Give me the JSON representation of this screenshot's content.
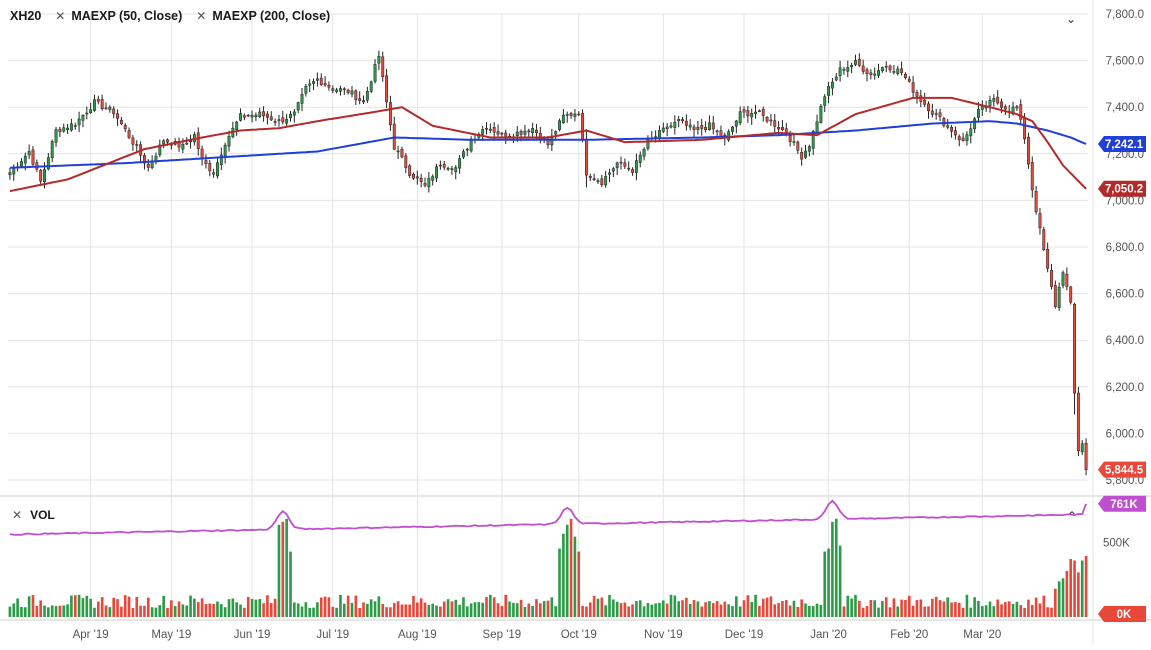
{
  "legend": {
    "symbol": "XH20",
    "close_icon": "close-icon",
    "ind1": "MAEXP (50, Close)",
    "ind2": "MAEXP (200, Close)"
  },
  "volume_panel": {
    "label": "VOL",
    "collapse_icon": "chevron-up-icon"
  },
  "price_panel": {
    "collapse_icon": "chevron-down-icon"
  },
  "colors": {
    "up": "#2b9b47",
    "down": "#e8473a",
    "ma50": "#b22a2a",
    "ma200": "#1f3fd6",
    "vol_ma": "#c04fd0",
    "grid": "#e4e4e4",
    "axis_text": "#555555"
  },
  "badges": {
    "ma200": "7,242.1",
    "ma50": "7,050.2",
    "last": "5,844.5",
    "vol_ma": "761K",
    "vol_last": "0K"
  },
  "chart_data": [
    {
      "type": "candlestick",
      "symbol": "XH20",
      "ylim": [
        5800,
        7800
      ],
      "y_ticks": [
        "7,800.0",
        "7,600.0",
        "7,400.0",
        "7,200.0",
        "7,000.0",
        "6,800.0",
        "6,600.0",
        "6,400.0",
        "6,200.0",
        "6,000.0",
        "5,800.0"
      ],
      "x_ticks": [
        "Apr '19",
        "May '19",
        "Jun '19",
        "Jul '19",
        "Aug '19",
        "Sep '19",
        "Oct '19",
        "Nov '19",
        "Dec '19",
        "Jan '20",
        "Feb '20",
        "Mar '20"
      ],
      "close_waypoints": [
        [
          0,
          7120
        ],
        [
          5,
          7210
        ],
        [
          8,
          7080
        ],
        [
          12,
          7300
        ],
        [
          17,
          7330
        ],
        [
          22,
          7420
        ],
        [
          27,
          7380
        ],
        [
          32,
          7250
        ],
        [
          36,
          7140
        ],
        [
          40,
          7260
        ],
        [
          45,
          7230
        ],
        [
          48,
          7280
        ],
        [
          50,
          7170
        ],
        [
          53,
          7120
        ],
        [
          56,
          7250
        ],
        [
          60,
          7360
        ],
        [
          65,
          7370
        ],
        [
          70,
          7340
        ],
        [
          74,
          7370
        ],
        [
          77,
          7480
        ],
        [
          80,
          7520
        ],
        [
          84,
          7480
        ],
        [
          88,
          7470
        ],
        [
          92,
          7420
        ],
        [
          96,
          7620
        ],
        [
          98,
          7420
        ],
        [
          100,
          7230
        ],
        [
          104,
          7120
        ],
        [
          108,
          7060
        ],
        [
          112,
          7160
        ],
        [
          116,
          7140
        ],
        [
          120,
          7260
        ],
        [
          124,
          7320
        ],
        [
          128,
          7280
        ],
        [
          132,
          7290
        ],
        [
          136,
          7310
        ],
        [
          140,
          7240
        ],
        [
          144,
          7360
        ],
        [
          148,
          7380
        ],
        [
          150,
          7120
        ],
        [
          154,
          7080
        ],
        [
          158,
          7160
        ],
        [
          162,
          7130
        ],
        [
          166,
          7250
        ],
        [
          170,
          7300
        ],
        [
          174,
          7340
        ],
        [
          178,
          7300
        ],
        [
          182,
          7320
        ],
        [
          186,
          7260
        ],
        [
          190,
          7370
        ],
        [
          194,
          7380
        ],
        [
          198,
          7340
        ],
        [
          202,
          7290
        ],
        [
          206,
          7190
        ],
        [
          208,
          7240
        ],
        [
          212,
          7450
        ],
        [
          216,
          7560
        ],
        [
          220,
          7590
        ],
        [
          224,
          7540
        ],
        [
          228,
          7580
        ],
        [
          232,
          7550
        ],
        [
          236,
          7450
        ],
        [
          240,
          7380
        ],
        [
          244,
          7320
        ],
        [
          248,
          7250
        ],
        [
          252,
          7380
        ],
        [
          256,
          7430
        ],
        [
          260,
          7390
        ],
        [
          262,
          7400
        ],
        [
          264,
          7270
        ],
        [
          266,
          7050
        ],
        [
          268,
          6870
        ],
        [
          270,
          6700
        ],
        [
          272,
          6550
        ],
        [
          274,
          6700
        ],
        [
          276,
          6550
        ],
        [
          277,
          6170
        ],
        [
          278,
          5930
        ],
        [
          279,
          5960
        ],
        [
          280,
          5870
        ]
      ],
      "ma50_waypoints": [
        [
          0,
          7040
        ],
        [
          15,
          7090
        ],
        [
          35,
          7220
        ],
        [
          50,
          7270
        ],
        [
          60,
          7300
        ],
        [
          70,
          7310
        ],
        [
          80,
          7340
        ],
        [
          95,
          7380
        ],
        [
          102,
          7400
        ],
        [
          110,
          7320
        ],
        [
          125,
          7270
        ],
        [
          140,
          7270
        ],
        [
          150,
          7300
        ],
        [
          160,
          7250
        ],
        [
          180,
          7260
        ],
        [
          200,
          7290
        ],
        [
          210,
          7280
        ],
        [
          220,
          7370
        ],
        [
          235,
          7440
        ],
        [
          245,
          7440
        ],
        [
          255,
          7400
        ],
        [
          262,
          7370
        ],
        [
          266,
          7340
        ],
        [
          270,
          7250
        ],
        [
          274,
          7150
        ],
        [
          280,
          7050
        ]
      ],
      "ma200_waypoints": [
        [
          0,
          7140
        ],
        [
          30,
          7160
        ],
        [
          60,
          7190
        ],
        [
          80,
          7210
        ],
        [
          100,
          7270
        ],
        [
          120,
          7260
        ],
        [
          150,
          7260
        ],
        [
          180,
          7270
        ],
        [
          200,
          7280
        ],
        [
          220,
          7300
        ],
        [
          240,
          7330
        ],
        [
          255,
          7340
        ],
        [
          262,
          7330
        ],
        [
          270,
          7300
        ],
        [
          276,
          7270
        ],
        [
          280,
          7242
        ]
      ],
      "last_close": 5844.5,
      "ma50_last": 7050.2,
      "ma200_last": 7242.1
    },
    {
      "type": "bar",
      "label": "VOL",
      "ylim": [
        0,
        800000
      ],
      "y_ticks": [
        "500K"
      ],
      "vol_ma_last": 761000,
      "spikes": [
        [
          70,
          620000
        ],
        [
          71,
          640000
        ],
        [
          72,
          660000
        ],
        [
          73,
          440000
        ],
        [
          143,
          460000
        ],
        [
          144,
          560000
        ],
        [
          145,
          620000
        ],
        [
          146,
          660000
        ],
        [
          147,
          540000
        ],
        [
          148,
          440000
        ],
        [
          212,
          440000
        ],
        [
          213,
          460000
        ],
        [
          214,
          640000
        ],
        [
          215,
          660000
        ],
        [
          216,
          480000
        ],
        [
          272,
          190000
        ],
        [
          273,
          240000
        ],
        [
          274,
          260000
        ],
        [
          275,
          310000
        ],
        [
          276,
          390000
        ],
        [
          277,
          380000
        ],
        [
          278,
          300000
        ],
        [
          279,
          380000
        ],
        [
          280,
          410000
        ]
      ]
    }
  ]
}
